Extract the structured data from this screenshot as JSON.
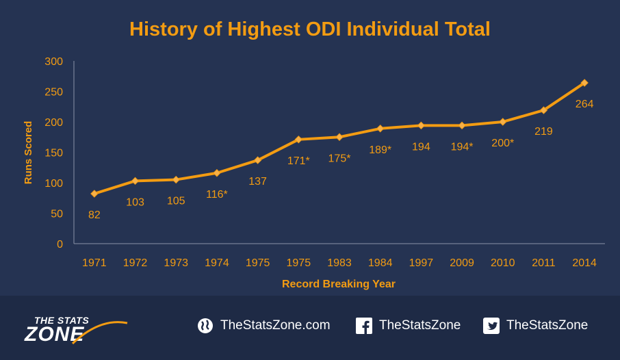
{
  "chart_data": {
    "type": "line",
    "title": "History of Highest ODI Individual Total",
    "xlabel": "Record Breaking Year",
    "ylabel": "Runs Scored",
    "categories": [
      "1971",
      "1972",
      "1973",
      "1974",
      "1975",
      "1975",
      "1983",
      "1984",
      "1997",
      "2009",
      "2010",
      "2011",
      "2014"
    ],
    "values": [
      82,
      103,
      105,
      116,
      137,
      171,
      175,
      189,
      194,
      194,
      200,
      219,
      264
    ],
    "data_labels": [
      "82",
      "103",
      "105",
      "116*",
      "137",
      "171*",
      "175*",
      "189*",
      "194",
      "194*",
      "200*",
      "219",
      "264"
    ],
    "ylim": [
      0,
      300
    ],
    "yticks": [
      0,
      50,
      100,
      150,
      200,
      250,
      300
    ],
    "grid": false,
    "legend": "none",
    "colors": {
      "line": "#f39c12",
      "marker": "#f5b04a",
      "text": "#f39c12",
      "background": "#253352"
    }
  },
  "footer": {
    "logo_top": "THE STATS",
    "logo_bottom": "ZONE",
    "website": "TheStatsZone.com",
    "facebook": "TheStatsZone",
    "twitter": "TheStatsZone",
    "icons": [
      "globe-icon",
      "facebook-icon",
      "twitter-icon"
    ]
  }
}
